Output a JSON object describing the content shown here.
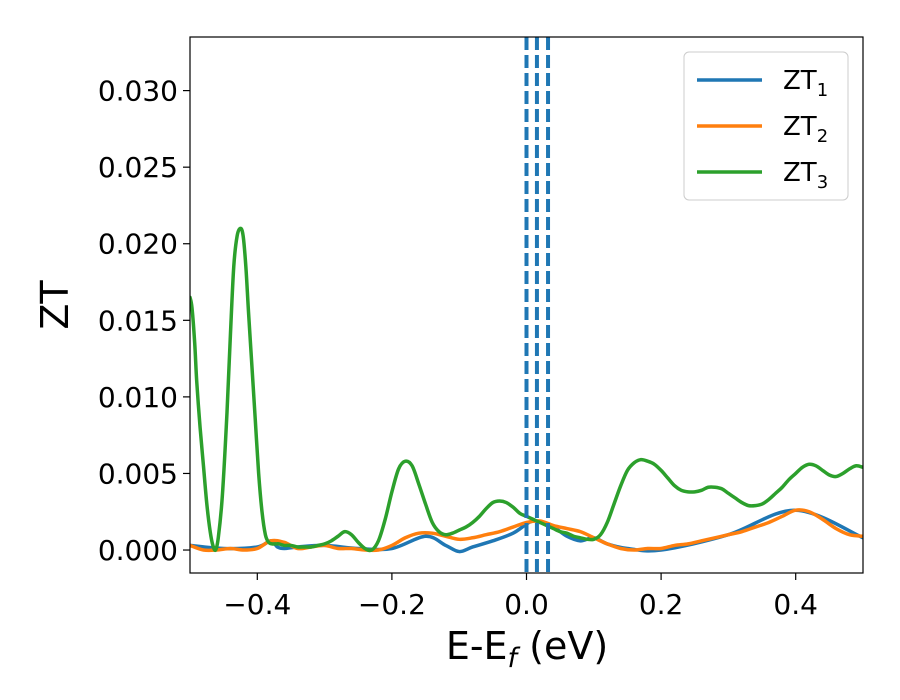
{
  "chart_data": {
    "type": "line",
    "title": "",
    "xlabel": {
      "main": "E-E",
      "sub": "f",
      "suffix": " (eV)"
    },
    "ylabel": "ZT",
    "xlim": [
      -0.5,
      0.5
    ],
    "ylim": [
      -0.0015,
      0.0335
    ],
    "xticks": [
      -0.4,
      -0.2,
      0.0,
      0.2,
      0.4
    ],
    "xtick_labels": [
      "−0.4",
      "−0.2",
      "0.0",
      "0.2",
      "0.4"
    ],
    "yticks": [
      0.0,
      0.005,
      0.01,
      0.015,
      0.02,
      0.025,
      0.03
    ],
    "ytick_labels": [
      "0.000",
      "0.005",
      "0.010",
      "0.015",
      "0.020",
      "0.025",
      "0.030"
    ],
    "legend_position": "top-right",
    "grid": false,
    "series": [
      {
        "name": "ZT",
        "name_sub": "1",
        "color": "#1f77b4",
        "x": [
          -0.5,
          -0.45,
          -0.4,
          -0.38,
          -0.37,
          -0.36,
          -0.34,
          -0.3,
          -0.25,
          -0.2,
          -0.15,
          -0.12,
          -0.1,
          -0.08,
          -0.05,
          -0.02,
          0.0,
          0.01,
          0.02,
          0.04,
          0.06,
          0.08,
          0.1,
          0.12,
          0.15,
          0.2,
          0.3,
          0.4,
          0.5
        ],
        "y": [
          0.0003,
          0.0001,
          0.0002,
          0.0006,
          0.0002,
          0.0001,
          0.0002,
          0.0003,
          0.0001,
          0.0001,
          0.0009,
          0.0003,
          -0.0001,
          0.0002,
          0.0006,
          0.0011,
          0.0017,
          0.0019,
          0.0018,
          0.0015,
          0.0009,
          0.0006,
          0.0008,
          0.0004,
          0.0001,
          0.0,
          0.001,
          0.0026,
          0.0008
        ]
      },
      {
        "name": "ZT",
        "name_sub": "2",
        "color": "#ff7f0e",
        "x": [
          -0.5,
          -0.48,
          -0.46,
          -0.44,
          -0.42,
          -0.4,
          -0.38,
          -0.36,
          -0.34,
          -0.32,
          -0.3,
          -0.28,
          -0.26,
          -0.24,
          -0.22,
          -0.2,
          -0.18,
          -0.16,
          -0.14,
          -0.12,
          -0.1,
          -0.08,
          -0.06,
          -0.04,
          -0.02,
          0.0,
          0.02,
          0.04,
          0.06,
          0.08,
          0.1,
          0.12,
          0.14,
          0.16,
          0.18,
          0.2,
          0.22,
          0.24,
          0.26,
          0.28,
          0.3,
          0.32,
          0.34,
          0.36,
          0.38,
          0.4,
          0.42,
          0.44,
          0.46,
          0.48,
          0.5
        ],
        "y": [
          0.0003,
          0.0,
          0.0,
          0.0001,
          0.0,
          0.0001,
          0.0006,
          0.0005,
          0.0001,
          0.0002,
          0.0003,
          0.0001,
          0.0001,
          0.0,
          0.0,
          0.0003,
          0.0008,
          0.0011,
          0.0011,
          0.0009,
          0.0007,
          0.0008,
          0.001,
          0.0012,
          0.0015,
          0.0018,
          0.0019,
          0.0016,
          0.0014,
          0.0012,
          0.0008,
          0.0004,
          0.0001,
          0.0,
          0.0001,
          0.0001,
          0.0003,
          0.0004,
          0.0006,
          0.0008,
          0.001,
          0.0012,
          0.0015,
          0.0018,
          0.0022,
          0.0026,
          0.0025,
          0.002,
          0.0014,
          0.001,
          0.0009
        ]
      },
      {
        "name": "ZT",
        "name_sub": "3",
        "color": "#2ca02c",
        "x": [
          -0.5,
          -0.497,
          -0.493,
          -0.49,
          -0.485,
          -0.48,
          -0.475,
          -0.47,
          -0.466,
          -0.462,
          -0.458,
          -0.452,
          -0.445,
          -0.44,
          -0.435,
          -0.43,
          -0.425,
          -0.421,
          -0.417,
          -0.413,
          -0.408,
          -0.403,
          -0.398,
          -0.393,
          -0.388,
          -0.383,
          -0.378,
          -0.373,
          -0.368,
          -0.36,
          -0.35,
          -0.34,
          -0.33,
          -0.32,
          -0.31,
          -0.3,
          -0.29,
          -0.28,
          -0.27,
          -0.26,
          -0.25,
          -0.24,
          -0.23,
          -0.22,
          -0.21,
          -0.2,
          -0.19,
          -0.18,
          -0.17,
          -0.16,
          -0.15,
          -0.14,
          -0.13,
          -0.12,
          -0.11,
          -0.1,
          -0.09,
          -0.08,
          -0.07,
          -0.06,
          -0.05,
          -0.04,
          -0.03,
          -0.02,
          -0.01,
          0.0,
          0.01,
          0.02,
          0.03,
          0.04,
          0.05,
          0.06,
          0.07,
          0.08,
          0.09,
          0.1,
          0.11,
          0.12,
          0.13,
          0.14,
          0.15,
          0.16,
          0.17,
          0.18,
          0.19,
          0.2,
          0.21,
          0.22,
          0.23,
          0.24,
          0.25,
          0.26,
          0.27,
          0.28,
          0.29,
          0.3,
          0.31,
          0.32,
          0.33,
          0.34,
          0.35,
          0.36,
          0.37,
          0.38,
          0.39,
          0.4,
          0.41,
          0.42,
          0.43,
          0.44,
          0.45,
          0.46,
          0.47,
          0.48,
          0.49,
          0.5
        ],
        "y": [
          0.0165,
          0.0158,
          0.0135,
          0.011,
          0.008,
          0.0055,
          0.003,
          0.0012,
          0.0003,
          0.0,
          0.0008,
          0.0035,
          0.009,
          0.014,
          0.0185,
          0.0205,
          0.021,
          0.0205,
          0.0185,
          0.0155,
          0.012,
          0.0085,
          0.005,
          0.0025,
          0.001,
          0.0005,
          0.0004,
          0.0004,
          0.0004,
          0.0003,
          0.0003,
          0.0002,
          0.0002,
          0.0002,
          0.0003,
          0.0004,
          0.0006,
          0.0009,
          0.0012,
          0.001,
          0.0005,
          0.0001,
          0.0,
          0.0006,
          0.002,
          0.0038,
          0.0053,
          0.0058,
          0.0055,
          0.0043,
          0.003,
          0.0018,
          0.0012,
          0.001,
          0.0011,
          0.0013,
          0.0015,
          0.0018,
          0.0022,
          0.0027,
          0.0031,
          0.0032,
          0.0031,
          0.0028,
          0.0024,
          0.0022,
          0.002,
          0.0018,
          0.0016,
          0.0014,
          0.0012,
          0.0011,
          0.0009,
          0.0008,
          0.0007,
          0.0007,
          0.001,
          0.0018,
          0.003,
          0.0042,
          0.0052,
          0.0057,
          0.0059,
          0.0058,
          0.0056,
          0.0052,
          0.0047,
          0.0042,
          0.0039,
          0.0038,
          0.0038,
          0.0039,
          0.0041,
          0.0041,
          0.004,
          0.0037,
          0.0034,
          0.0031,
          0.0029,
          0.0029,
          0.003,
          0.0033,
          0.0037,
          0.0041,
          0.0046,
          0.005,
          0.0054,
          0.0056,
          0.0055,
          0.0052,
          0.0049,
          0.0048,
          0.005,
          0.0053,
          0.0055,
          0.0054
        ]
      }
    ],
    "vlines": [
      {
        "x": 0.0,
        "color": "#000000",
        "style": "dashed"
      },
      {
        "x": 0.0,
        "color": "#1f77b4",
        "style": "dashed"
      },
      {
        "x": 0.0155,
        "color": "#1f77b4",
        "style": "dashed"
      },
      {
        "x": 0.032,
        "color": "#1f77b4",
        "style": "dashed"
      }
    ]
  }
}
